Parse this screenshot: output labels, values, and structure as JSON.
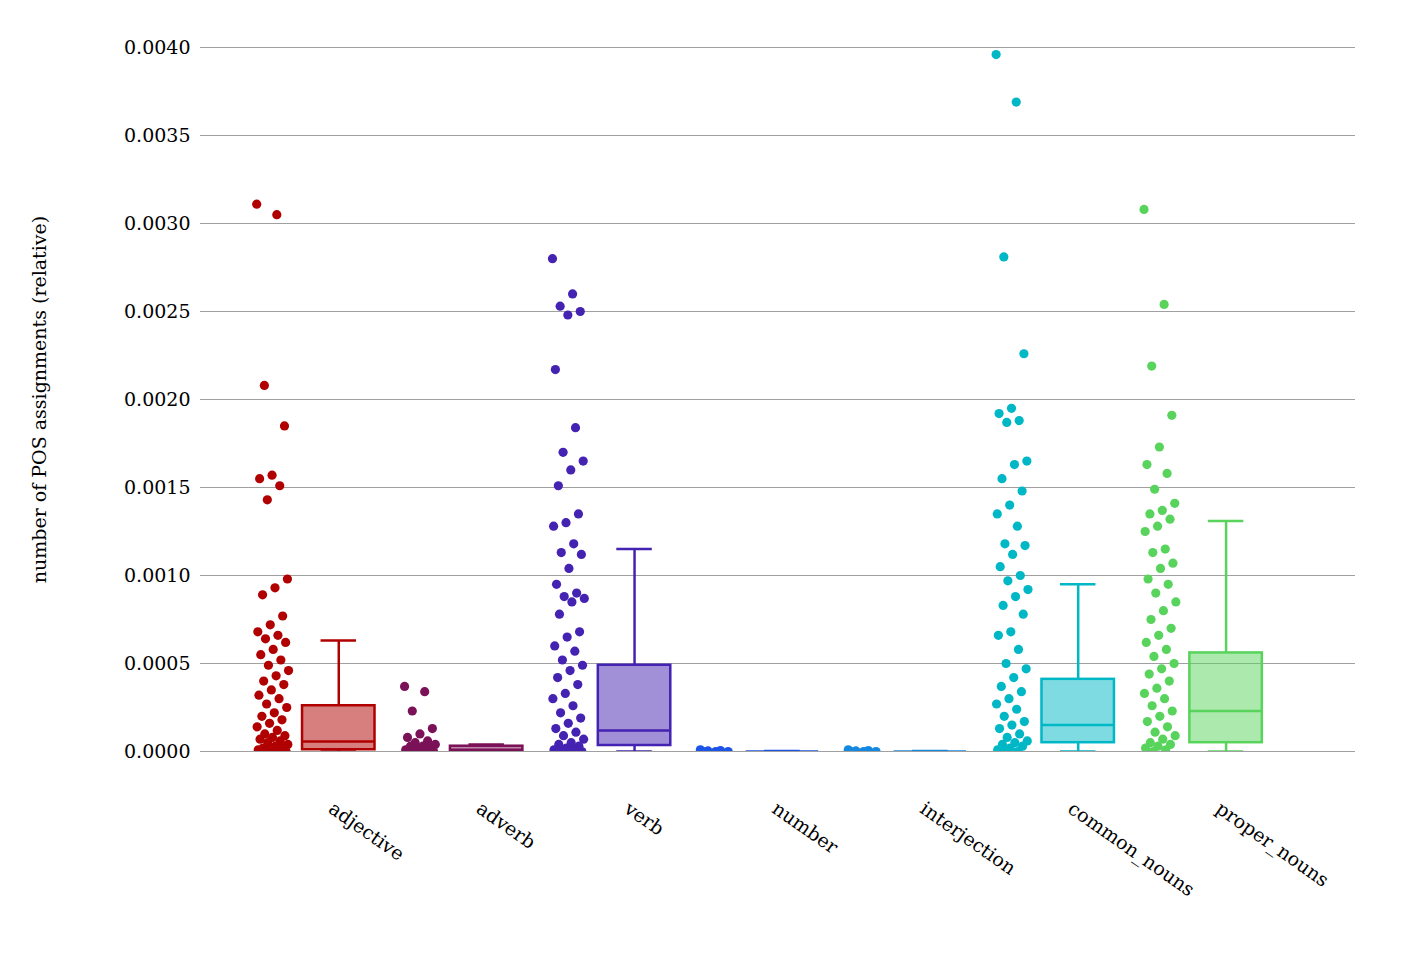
{
  "chart_data": {
    "type": "box",
    "y_label": "number of POS assignments (relative)",
    "categories": [
      "adjective",
      "adverb",
      "verb",
      "number",
      "interjection",
      "common_nouns",
      "proper_nouns"
    ],
    "colors": [
      "#b00000",
      "#7b1157",
      "#4422b2",
      "#1d54e8",
      "#1588e0",
      "#00b7c6",
      "#58d45c"
    ],
    "values": [
      [
        0.00311,
        0.00305,
        0.00208,
        0.00185,
        0.00157,
        0.00155,
        0.00151,
        0.00143,
        0.00098,
        0.00093,
        0.00089,
        0.00077,
        0.00072,
        0.00068,
        0.00066,
        0.00064,
        0.00062,
        0.00058,
        0.00055,
        0.00052,
        0.00049,
        0.00046,
        0.00043,
        0.0004,
        0.00038,
        0.00035,
        0.00032,
        0.0003,
        0.00027,
        0.00025,
        0.00022,
        0.0002,
        0.00018,
        0.00016,
        0.00014,
        0.00012,
        0.0001,
        9e-05,
        8e-05,
        7e-05,
        6e-05,
        5e-05,
        4e-05,
        3e-05,
        2e-05,
        2e-05,
        1e-05,
        1e-05,
        0,
        0,
        0,
        0
      ],
      [
        0.00037,
        0.00034,
        0.00023,
        0.00013,
        0.0001,
        8e-05,
        6e-05,
        5e-05,
        4e-05,
        3e-05,
        3e-05,
        2e-05,
        2e-05,
        1e-05,
        1e-05,
        1e-05,
        0,
        0,
        0,
        0,
        0
      ],
      [
        0.0028,
        0.0026,
        0.00253,
        0.0025,
        0.00248,
        0.00217,
        0.00184,
        0.0017,
        0.00165,
        0.0016,
        0.00151,
        0.00135,
        0.0013,
        0.00128,
        0.00118,
        0.00113,
        0.00112,
        0.00104,
        0.00095,
        0.0009,
        0.00088,
        0.00087,
        0.00085,
        0.00078,
        0.00068,
        0.00065,
        0.0006,
        0.00057,
        0.00052,
        0.00049,
        0.00046,
        0.00042,
        0.00038,
        0.00033,
        0.0003,
        0.00026,
        0.00022,
        0.00019,
        0.00016,
        0.00013,
        0.00011,
        9e-05,
        7e-05,
        5e-05,
        4e-05,
        3e-05,
        2e-05,
        1e-05,
        1e-05,
        0,
        0
      ],
      [
        1e-05,
        5e-06,
        3e-06,
        0,
        0,
        0
      ],
      [
        1e-05,
        5e-06,
        3e-06,
        0,
        0,
        0
      ],
      [
        0.00396,
        0.00369,
        0.00281,
        0.00226,
        0.00195,
        0.00192,
        0.00188,
        0.00187,
        0.00165,
        0.00163,
        0.00155,
        0.00148,
        0.0014,
        0.00135,
        0.00128,
        0.00118,
        0.00117,
        0.00112,
        0.00105,
        0.001,
        0.00097,
        0.00092,
        0.00088,
        0.00083,
        0.00078,
        0.00068,
        0.00066,
        0.00058,
        0.0005,
        0.00047,
        0.00042,
        0.00037,
        0.00034,
        0.0003,
        0.00027,
        0.00024,
        0.0002,
        0.00017,
        0.00015,
        0.00013,
        0.0001,
        8e-05,
        6e-05,
        5e-05,
        4e-05,
        3e-05,
        2e-05,
        1e-05,
        0,
        0
      ],
      [
        0.00308,
        0.00254,
        0.00219,
        0.00191,
        0.00173,
        0.00163,
        0.00158,
        0.00149,
        0.00141,
        0.00137,
        0.00135,
        0.00132,
        0.00128,
        0.00125,
        0.00115,
        0.00113,
        0.00107,
        0.00104,
        0.00098,
        0.00095,
        0.0009,
        0.00085,
        0.0008,
        0.00075,
        0.0007,
        0.00066,
        0.00062,
        0.00058,
        0.00054,
        0.0005,
        0.00047,
        0.00044,
        0.0004,
        0.00036,
        0.00033,
        0.0003,
        0.00026,
        0.00023,
        0.0002,
        0.00017,
        0.00014,
        0.00011,
        9e-05,
        7e-05,
        5e-05,
        4e-05,
        3e-05,
        2e-05,
        1e-05,
        0
      ]
    ],
    "boxes": [
      {
        "lower": 0,
        "q1": 1e-05,
        "median": 5.7e-05,
        "q3": 0.00026,
        "upper": 0.00063
      },
      {
        "lower": 0,
        "q1": 0,
        "median": 1e-05,
        "q3": 3e-05,
        "upper": 4e-05
      },
      {
        "lower": 0,
        "q1": 3.4e-05,
        "median": 0.00012,
        "q3": 0.00049,
        "upper": 0.00115
      },
      {
        "lower": 0,
        "q1": 0,
        "median": 0,
        "q3": 0,
        "upper": 3e-06
      },
      {
        "lower": 0,
        "q1": 0,
        "median": 0,
        "q3": 0,
        "upper": 3e-06
      },
      {
        "lower": 0,
        "q1": 5e-05,
        "median": 0.00015,
        "q3": 0.00041,
        "upper": 0.00095
      },
      {
        "lower": 0,
        "q1": 5e-05,
        "median": 0.00023,
        "q3": 0.00056,
        "upper": 0.00131
      }
    ],
    "ylim": [
      0,
      0.004
    ],
    "yticks": [
      0,
      0.0005,
      0.001,
      0.0015,
      0.002,
      0.0025,
      0.003,
      0.0035,
      0.004
    ],
    "grid": true
  }
}
